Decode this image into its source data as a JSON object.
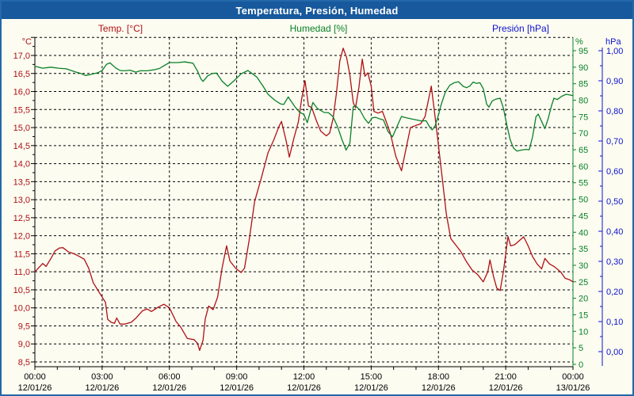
{
  "window": {
    "title": "Temperatura, Presión, Humedad"
  },
  "legend": {
    "temp_label": "Temp. [°C]",
    "humidity_label": "Humedad [%]",
    "pressure_label": "Presión [hPa]"
  },
  "colors": {
    "titlebar": "#17599c",
    "frame_border": "#2368a8",
    "background": "#fcfcf1",
    "temp_series": "#b01014",
    "humidity_series": "#0a8028",
    "pressure_axis": "#0f14cc",
    "grid": "#000000"
  },
  "chart_data": {
    "type": "line",
    "title": "Temperatura, Presión, Humedad",
    "grid": "dashed, horizontal every 0.5 °C, vertical every 3 h",
    "legend_position": "top",
    "x_axis": {
      "range_hours": [
        0,
        24
      ],
      "gridline_every_hours": 3,
      "tick_every_hours": 1,
      "time_labels": [
        "00:00",
        "03:00",
        "06:00",
        "09:00",
        "12:00",
        "15:00",
        "18:00",
        "21:00",
        "00:00"
      ],
      "date_labels": [
        "12/01/26",
        "12/01/26",
        "12/01/26",
        "12/01/26",
        "12/01/26",
        "12/01/26",
        "12/01/26",
        "12/01/26",
        "13/01/26"
      ]
    },
    "axes": {
      "temp": {
        "side": "left",
        "unit": "°C",
        "color": "#b01014",
        "min": 8.5,
        "max": 17.5,
        "label_step": 0.5,
        "tick_labels": [
          "17,0",
          "16,5",
          "16,0",
          "15,5",
          "15,0",
          "14,5",
          "14,0",
          "13,5",
          "13,0",
          "12,5",
          "12,0",
          "11,5",
          "11,0",
          "10,5",
          "10,0",
          "9,5",
          "9,0",
          "8,5"
        ]
      },
      "humidity": {
        "side": "right",
        "unit": "%",
        "color": "#0a8028",
        "min": 0,
        "max": 100,
        "label_step": 5,
        "tick_labels": [
          "95",
          "90",
          "85",
          "80",
          "75",
          "70",
          "65",
          "60",
          "55",
          "50",
          "45",
          "40",
          "35",
          "30",
          "25",
          "20",
          "15",
          "10",
          "5",
          "0"
        ]
      },
      "pressure": {
        "side": "far-right",
        "unit": "hPa",
        "color": "#0f14cc",
        "min": 0.0,
        "max": 1.0,
        "label_step": 0.1,
        "tick_labels": [
          "1,00",
          "0,90",
          "0,80",
          "0,70",
          "0,60",
          "0,50",
          "0,40",
          "0,30",
          "0,20",
          "0,10",
          "0,00"
        ]
      }
    },
    "series": [
      {
        "name": "Temp. [°C]",
        "axis": "temp",
        "color": "#b01014",
        "points": [
          [
            0,
            11.0
          ],
          [
            0.35,
            11.23
          ],
          [
            0.5,
            11.15
          ],
          [
            0.7,
            11.35
          ],
          [
            0.9,
            11.58
          ],
          [
            1.1,
            11.66
          ],
          [
            1.25,
            11.67
          ],
          [
            1.5,
            11.55
          ],
          [
            1.75,
            11.5
          ],
          [
            2.0,
            11.42
          ],
          [
            2.2,
            11.35
          ],
          [
            2.4,
            11.1
          ],
          [
            2.6,
            10.7
          ],
          [
            2.9,
            10.4
          ],
          [
            3.05,
            10.25
          ],
          [
            3.15,
            10.15
          ],
          [
            3.25,
            9.68
          ],
          [
            3.4,
            9.6
          ],
          [
            3.55,
            9.57
          ],
          [
            3.65,
            9.72
          ],
          [
            3.8,
            9.55
          ],
          [
            4.0,
            9.55
          ],
          [
            4.3,
            9.6
          ],
          [
            4.5,
            9.71
          ],
          [
            4.8,
            9.92
          ],
          [
            5.0,
            9.97
          ],
          [
            5.2,
            9.9
          ],
          [
            5.5,
            10.02
          ],
          [
            5.75,
            10.1
          ],
          [
            6.0,
            10.0
          ],
          [
            6.3,
            9.62
          ],
          [
            6.5,
            9.47
          ],
          [
            6.8,
            9.15
          ],
          [
            7.1,
            9.12
          ],
          [
            7.25,
            9.02
          ],
          [
            7.35,
            8.82
          ],
          [
            7.5,
            9.1
          ],
          [
            7.6,
            9.7
          ],
          [
            7.75,
            10.05
          ],
          [
            7.95,
            9.95
          ],
          [
            8.15,
            10.3
          ],
          [
            8.35,
            11.1
          ],
          [
            8.55,
            11.72
          ],
          [
            8.7,
            11.3
          ],
          [
            8.95,
            11.1
          ],
          [
            9.2,
            10.98
          ],
          [
            9.35,
            11.1
          ],
          [
            9.55,
            11.85
          ],
          [
            9.8,
            12.95
          ],
          [
            10.1,
            13.6
          ],
          [
            10.4,
            14.3
          ],
          [
            10.65,
            14.65
          ],
          [
            10.9,
            15.05
          ],
          [
            11.0,
            15.17
          ],
          [
            11.2,
            14.65
          ],
          [
            11.35,
            14.18
          ],
          [
            11.55,
            14.7
          ],
          [
            11.75,
            15.15
          ],
          [
            11.9,
            15.8
          ],
          [
            12.05,
            16.3
          ],
          [
            12.2,
            15.6
          ],
          [
            12.35,
            15.55
          ],
          [
            12.55,
            15.2
          ],
          [
            12.75,
            14.9
          ],
          [
            13.0,
            14.77
          ],
          [
            13.15,
            14.85
          ],
          [
            13.3,
            15.25
          ],
          [
            13.45,
            15.95
          ],
          [
            13.6,
            16.85
          ],
          [
            13.75,
            17.2
          ],
          [
            13.9,
            16.95
          ],
          [
            14.05,
            16.45
          ],
          [
            14.2,
            15.7
          ],
          [
            14.3,
            15.55
          ],
          [
            14.45,
            16.1
          ],
          [
            14.6,
            16.9
          ],
          [
            14.72,
            16.42
          ],
          [
            14.85,
            16.52
          ],
          [
            15.0,
            16.15
          ],
          [
            15.12,
            15.45
          ],
          [
            15.3,
            15.4
          ],
          [
            15.5,
            15.45
          ],
          [
            15.65,
            15.2
          ],
          [
            15.85,
            14.85
          ],
          [
            16.1,
            14.2
          ],
          [
            16.35,
            13.8
          ],
          [
            16.55,
            14.4
          ],
          [
            16.75,
            15.0
          ],
          [
            17.0,
            15.06
          ],
          [
            17.2,
            15.1
          ],
          [
            17.4,
            15.3
          ],
          [
            17.55,
            15.75
          ],
          [
            17.68,
            16.15
          ],
          [
            17.85,
            15.3
          ],
          [
            18.0,
            14.5
          ],
          [
            18.15,
            13.7
          ],
          [
            18.35,
            12.6
          ],
          [
            18.55,
            11.92
          ],
          [
            18.8,
            11.72
          ],
          [
            19.0,
            11.56
          ],
          [
            19.25,
            11.28
          ],
          [
            19.5,
            11.05
          ],
          [
            19.75,
            10.92
          ],
          [
            20.0,
            10.72
          ],
          [
            20.2,
            11.0
          ],
          [
            20.3,
            11.33
          ],
          [
            20.45,
            10.88
          ],
          [
            20.6,
            10.55
          ],
          [
            20.75,
            10.48
          ],
          [
            20.9,
            11.02
          ],
          [
            21.1,
            11.98
          ],
          [
            21.22,
            11.72
          ],
          [
            21.4,
            11.75
          ],
          [
            21.6,
            11.86
          ],
          [
            21.8,
            11.97
          ],
          [
            22.0,
            11.72
          ],
          [
            22.2,
            11.42
          ],
          [
            22.4,
            11.22
          ],
          [
            22.6,
            11.08
          ],
          [
            22.75,
            11.37
          ],
          [
            22.95,
            11.22
          ],
          [
            23.15,
            11.15
          ],
          [
            23.45,
            11.0
          ],
          [
            23.65,
            10.82
          ],
          [
            23.85,
            10.78
          ],
          [
            24.0,
            10.72
          ]
        ]
      },
      {
        "name": "Humedad [%]",
        "axis": "humidity",
        "color": "#0a8028",
        "points": [
          [
            0,
            90.3
          ],
          [
            0.35,
            89.7
          ],
          [
            0.7,
            90.0
          ],
          [
            1.05,
            89.7
          ],
          [
            1.4,
            89.5
          ],
          [
            1.8,
            88.6
          ],
          [
            2.05,
            88.1
          ],
          [
            2.25,
            87.5
          ],
          [
            2.5,
            87.8
          ],
          [
            2.8,
            88.3
          ],
          [
            3.0,
            89.0
          ],
          [
            3.2,
            90.9
          ],
          [
            3.35,
            91.3
          ],
          [
            3.6,
            89.8
          ],
          [
            3.8,
            89.0
          ],
          [
            4.0,
            88.9
          ],
          [
            4.25,
            89.1
          ],
          [
            4.5,
            88.5
          ],
          [
            4.7,
            88.9
          ],
          [
            5.0,
            88.9
          ],
          [
            5.3,
            89.2
          ],
          [
            5.55,
            89.6
          ],
          [
            5.8,
            90.6
          ],
          [
            6.0,
            91.4
          ],
          [
            6.35,
            91.4
          ],
          [
            6.7,
            91.6
          ],
          [
            7.05,
            91.2
          ],
          [
            7.25,
            88.9
          ],
          [
            7.4,
            86.5
          ],
          [
            7.5,
            85.7
          ],
          [
            7.7,
            87.3
          ],
          [
            7.9,
            88.1
          ],
          [
            8.1,
            88.2
          ],
          [
            8.35,
            85.8
          ],
          [
            8.6,
            84.2
          ],
          [
            8.9,
            86.0
          ],
          [
            9.2,
            88.0
          ],
          [
            9.5,
            89.0
          ],
          [
            9.9,
            87.0
          ],
          [
            10.2,
            84.0
          ],
          [
            10.4,
            81.8
          ],
          [
            10.7,
            80.0
          ],
          [
            10.95,
            78.9
          ],
          [
            11.1,
            78.7
          ],
          [
            11.3,
            81.0
          ],
          [
            11.6,
            78.0
          ],
          [
            11.8,
            76.4
          ],
          [
            12.0,
            75.7
          ],
          [
            12.15,
            73.2
          ],
          [
            12.4,
            79.3
          ],
          [
            12.6,
            77.5
          ],
          [
            12.9,
            76.3
          ],
          [
            13.1,
            76.2
          ],
          [
            13.3,
            75.0
          ],
          [
            13.5,
            72.0
          ],
          [
            13.7,
            68.0
          ],
          [
            13.88,
            64.9
          ],
          [
            14.05,
            67.0
          ],
          [
            14.2,
            78.0
          ],
          [
            14.3,
            78.3
          ],
          [
            14.5,
            77.0
          ],
          [
            14.7,
            74.5
          ],
          [
            14.88,
            73.0
          ],
          [
            15.05,
            74.7
          ],
          [
            15.2,
            74.8
          ],
          [
            15.4,
            74.3
          ],
          [
            15.55,
            74.0
          ],
          [
            15.75,
            70.5
          ],
          [
            15.95,
            68.9
          ],
          [
            16.15,
            72.0
          ],
          [
            16.35,
            75.1
          ],
          [
            16.55,
            74.7
          ],
          [
            16.9,
            74.2
          ],
          [
            17.25,
            73.7
          ],
          [
            17.45,
            73.8
          ],
          [
            17.6,
            72.0
          ],
          [
            17.72,
            71.0
          ],
          [
            17.85,
            72.2
          ],
          [
            18.0,
            75.5
          ],
          [
            18.1,
            78.2
          ],
          [
            18.3,
            82.3
          ],
          [
            18.5,
            84.5
          ],
          [
            18.7,
            85.3
          ],
          [
            18.9,
            85.6
          ],
          [
            19.1,
            84.2
          ],
          [
            19.25,
            83.8
          ],
          [
            19.4,
            84.3
          ],
          [
            19.55,
            85.5
          ],
          [
            19.7,
            85.1
          ],
          [
            19.85,
            85.3
          ],
          [
            20.0,
            83.5
          ],
          [
            20.15,
            78.8
          ],
          [
            20.25,
            77.9
          ],
          [
            20.4,
            79.8
          ],
          [
            20.55,
            80.3
          ],
          [
            20.75,
            80.6
          ],
          [
            20.9,
            77.5
          ],
          [
            21.05,
            72.5
          ],
          [
            21.2,
            68.0
          ],
          [
            21.35,
            65.5
          ],
          [
            21.5,
            64.6
          ],
          [
            21.7,
            64.9
          ],
          [
            21.9,
            65.1
          ],
          [
            22.05,
            65.0
          ],
          [
            22.2,
            69.0
          ],
          [
            22.35,
            75.0
          ],
          [
            22.45,
            75.8
          ],
          [
            22.6,
            73.6
          ],
          [
            22.75,
            71.4
          ],
          [
            22.9,
            74.6
          ],
          [
            23.05,
            78.5
          ],
          [
            23.15,
            80.6
          ],
          [
            23.3,
            80.2
          ],
          [
            23.5,
            81.2
          ],
          [
            23.7,
            81.8
          ],
          [
            23.85,
            81.6
          ],
          [
            24.0,
            81.4
          ]
        ]
      },
      {
        "name": "Presión [hPa]",
        "axis": "pressure",
        "color": "#0f14cc",
        "points": []
      }
    ]
  }
}
